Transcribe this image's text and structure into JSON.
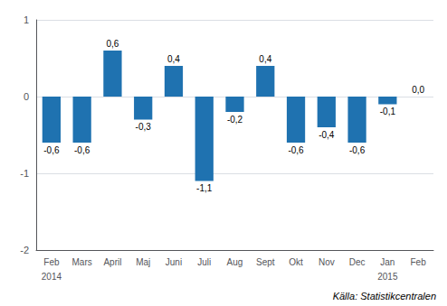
{
  "chart_data": {
    "type": "bar",
    "categories": [
      "Feb",
      "Mars",
      "April",
      "Maj",
      "Juni",
      "Juli",
      "Aug",
      "Sept",
      "Okt",
      "Nov",
      "Dec",
      "Jan",
      "Feb"
    ],
    "values": [
      -0.6,
      -0.6,
      0.6,
      -0.3,
      0.4,
      -1.1,
      -0.2,
      0.4,
      -0.6,
      -0.4,
      -0.6,
      -0.1,
      0.0
    ],
    "value_labels": [
      "-0,6",
      "-0,6",
      "0,6",
      "-0,3",
      "0,4",
      "-1,1",
      "-0,2",
      "0,4",
      "-0,6",
      "-0,4",
      "-0,6",
      "-0,1",
      "0,0"
    ],
    "data_labels": true,
    "color": "#1f72b0",
    "ylim": [
      -2,
      1
    ],
    "yticks": [
      -2,
      -1,
      0,
      1
    ],
    "grid": true,
    "annotations": [
      {
        "text": "2014",
        "index": 0
      },
      {
        "text": "2015",
        "index": 11
      },
      {
        "text": "Källa: Statistikcentralen"
      }
    ]
  }
}
